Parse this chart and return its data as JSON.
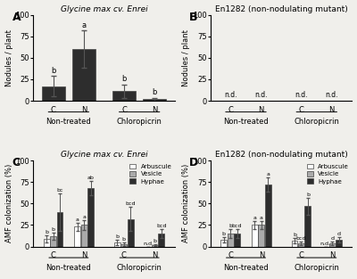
{
  "panel_A": {
    "title": "Glycine max cv. Enrei",
    "ylabel": "Nodules / plant",
    "ylim": [
      0,
      100
    ],
    "yticks": [
      0,
      25,
      50,
      75,
      100
    ],
    "bars": {
      "C_NT": {
        "mean": 17,
        "err": 12
      },
      "N_NT": {
        "mean": 60,
        "err": 22
      },
      "C_CP": {
        "mean": 11,
        "err": 8
      },
      "N_CP": {
        "mean": 2,
        "err": 1.5
      }
    },
    "labels": {
      "C_NT": "b",
      "N_NT": "a",
      "C_CP": "b",
      "N_CP": "b"
    },
    "bar_color": "#2d2d2d"
  },
  "panel_B": {
    "title": "En1282 (non-nodulating mutant)",
    "ylabel": "Nodules / plant",
    "ylim": [
      0,
      100
    ],
    "yticks": [
      0,
      25,
      50,
      75,
      100
    ],
    "nd_labels": [
      "n.d.",
      "n.d.",
      "n.d.",
      "n.d."
    ]
  },
  "panel_C": {
    "title": "Glycine max cv. Enrei",
    "ylabel": "AMF colonization (%)",
    "ylim": [
      0,
      100
    ],
    "yticks": [
      0,
      25,
      50,
      75,
      100
    ],
    "bars": {
      "C_NT": {
        "arb": 9,
        "arb_err": 4,
        "ves": 12,
        "ves_err": 4,
        "hyp": 40,
        "hyp_err": 22
      },
      "N_NT": {
        "arb": 23,
        "arb_err": 5,
        "ves": 25,
        "ves_err": 6,
        "hyp": 68,
        "hyp_err": 8
      },
      "C_CP": {
        "arb": 5,
        "arb_err": 3,
        "ves": 3,
        "ves_err": 2,
        "hyp": 32,
        "hyp_err": 14
      },
      "N_CP": {
        "arb": 0,
        "arb_err": 0,
        "ves": 2,
        "ves_err": 1,
        "hyp": 15,
        "hyp_err": 5
      }
    },
    "labels": {
      "C_NT": {
        "arb": "b",
        "ves": "b",
        "hyp": "bc"
      },
      "N_NT": {
        "arb": "a",
        "ves": "a",
        "hyp": "ab"
      },
      "C_CP": {
        "arb": "b",
        "ves": "b",
        "hyp": "bcd"
      },
      "N_CP": {
        "arb": "n.d.",
        "ves": "b",
        "hyp": "bcd"
      }
    },
    "colors": {
      "arb": "#ffffff",
      "ves": "#aaaaaa",
      "hyp": "#2d2d2d"
    },
    "legend": [
      "Arbuscule",
      "Vesicle",
      "Hyphae"
    ]
  },
  "panel_D": {
    "title": "En1282 (non-nodulating mutant)",
    "ylabel": "AMF colonization (%)",
    "ylim": [
      0,
      100
    ],
    "yticks": [
      0,
      25,
      50,
      75,
      100
    ],
    "bars": {
      "C_NT": {
        "arb": 8,
        "arb_err": 3,
        "ves": 15,
        "ves_err": 5,
        "hyp": 15,
        "hyp_err": 5
      },
      "N_NT": {
        "arb": 25,
        "arb_err": 5,
        "ves": 25,
        "ves_err": 5,
        "hyp": 72,
        "hyp_err": 8
      },
      "C_CP": {
        "arb": 7,
        "arb_err": 3,
        "ves": 4,
        "ves_err": 2,
        "hyp": 47,
        "hyp_err": 10
      },
      "N_CP": {
        "arb": 0,
        "arb_err": 0,
        "ves": 4,
        "ves_err": 2,
        "hyp": 8,
        "hyp_err": 3
      }
    },
    "labels": {
      "C_NT": {
        "arb": "b",
        "ves": "b",
        "hyp": "bcd"
      },
      "N_NT": {
        "arb": "a",
        "ves": "a",
        "hyp": "a"
      },
      "C_CP": {
        "arb": "b",
        "ves": "bcd",
        "hyp": "b"
      },
      "N_CP": {
        "arb": "n.d.",
        "ves": "d",
        "hyp": "d"
      }
    },
    "colors": {
      "arb": "#ffffff",
      "ves": "#aaaaaa",
      "hyp": "#2d2d2d"
    },
    "legend": [
      "Arbuscule",
      "Vesicle",
      "Hyphae"
    ]
  },
  "background_color": "#f0efeb",
  "bar_edge_color": "#444444",
  "error_color": "#555555",
  "cn_labels": [
    "C",
    "N"
  ],
  "groups": [
    "Non-treated",
    "Chloropicrin"
  ]
}
